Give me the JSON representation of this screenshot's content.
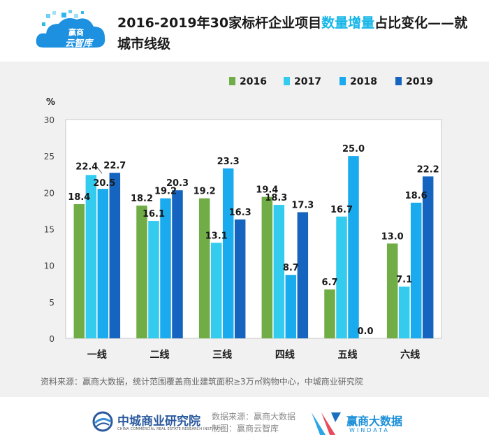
{
  "logo": {
    "line1": "赢商",
    "line2": "云智库"
  },
  "title": {
    "prefix": "2016-2019年30家标杆企业项目",
    "highlight": "数量增量",
    "suffix": "占比变化——就城市线级"
  },
  "chart_data": {
    "type": "bar",
    "title": "2016-2019年30家标杆企业项目数量增量占比变化——就城市线级",
    "ylabel": "%",
    "xlabel": "",
    "ylim": [
      0,
      30
    ],
    "yticks": [
      0,
      5,
      10,
      15,
      20,
      25,
      30
    ],
    "categories": [
      "一线",
      "二线",
      "三线",
      "四线",
      "五线",
      "六线"
    ],
    "series": [
      {
        "name": "2016",
        "color": "#70ad47",
        "values": [
          18.4,
          18.2,
          19.2,
          19.4,
          6.7,
          13.0
        ]
      },
      {
        "name": "2017",
        "color": "#33ccee",
        "values": [
          22.4,
          16.1,
          13.1,
          18.3,
          16.7,
          7.1
        ]
      },
      {
        "name": "2018",
        "color": "#1aabef",
        "values": [
          20.5,
          19.2,
          23.3,
          8.7,
          25.0,
          18.6
        ]
      },
      {
        "name": "2019",
        "color": "#1565c0",
        "values": [
          22.7,
          20.3,
          16.3,
          17.3,
          0.0,
          22.2
        ]
      }
    ],
    "legend_position": "top-right",
    "grid": false
  },
  "source_note": "资料来源：赢商大数据，统计范围覆盖商业建筑面积≥3万㎡购物中心，中城商业研究院",
  "footer": {
    "org_name": "中城商业研究院",
    "org_sub": "CHINA COMMERCIAL REAL ESTATE RESEARCH INSTITUTE",
    "data_source": "数据来源：赢商大数据",
    "made_by": "制图：赢商云智库",
    "win_name": "赢商大数据",
    "win_sub": "WINDATA"
  }
}
